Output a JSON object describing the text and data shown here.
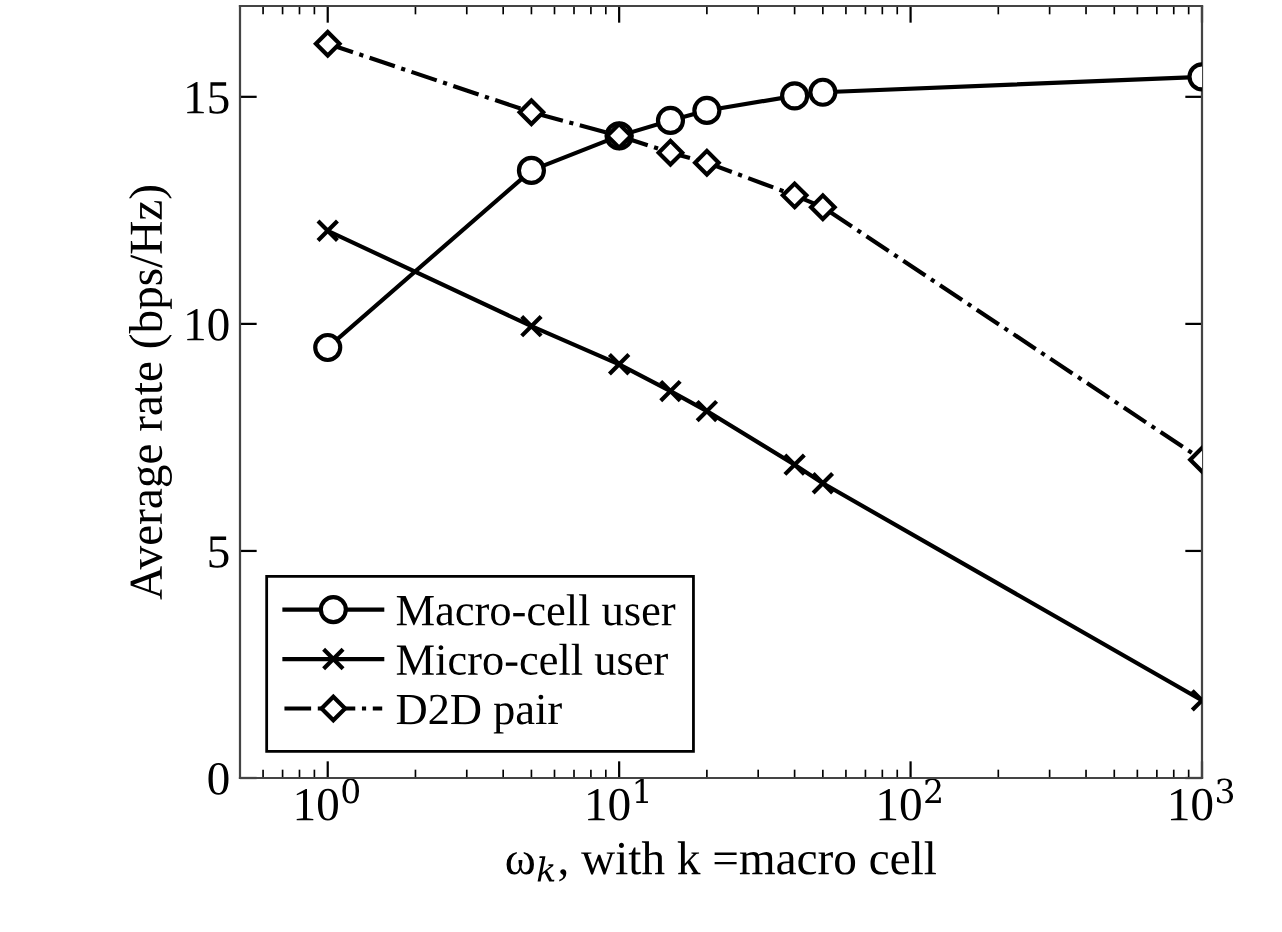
{
  "chart_data": {
    "type": "line",
    "xlabel": "ω$_{k}$, with k =macro cell",
    "ylabel": "Average rate (bps/Hz)",
    "log": "x",
    "x": [
      1,
      5,
      10,
      15,
      20,
      40,
      50,
      1000
    ],
    "xlim": [
      0.5,
      1000
    ],
    "xticks": [
      {
        "value": 1,
        "label": "10$^{0}$"
      },
      {
        "value": 10,
        "label": "10$^{1}$"
      },
      {
        "value": 100,
        "label": "10$^{2}$"
      },
      {
        "value": 1000,
        "label": "10$^{3}$"
      }
    ],
    "ylim": [
      0,
      17
    ],
    "yticks": [
      0,
      5,
      10,
      15
    ],
    "grid": false,
    "legend": "bottom left",
    "series": [
      {
        "name": "Macro-cell user",
        "color": "#000000",
        "marker": "circle",
        "line_style": "solid",
        "values": [
          9.48,
          13.38,
          14.14,
          14.48,
          14.7,
          15.02,
          15.1,
          15.44
        ]
      },
      {
        "name": "Micro-cell user",
        "color": "#000000",
        "marker": "cross",
        "line_style": "solid",
        "values": [
          12.05,
          9.95,
          9.11,
          8.52,
          8.08,
          6.9,
          6.49,
          1.71
        ]
      },
      {
        "name": "D2D pair",
        "color": "#000000",
        "marker": "diamond",
        "line_style": "dashdot",
        "values": [
          16.17,
          14.66,
          14.14,
          13.77,
          13.55,
          12.83,
          12.57,
          7.01
        ]
      }
    ]
  }
}
